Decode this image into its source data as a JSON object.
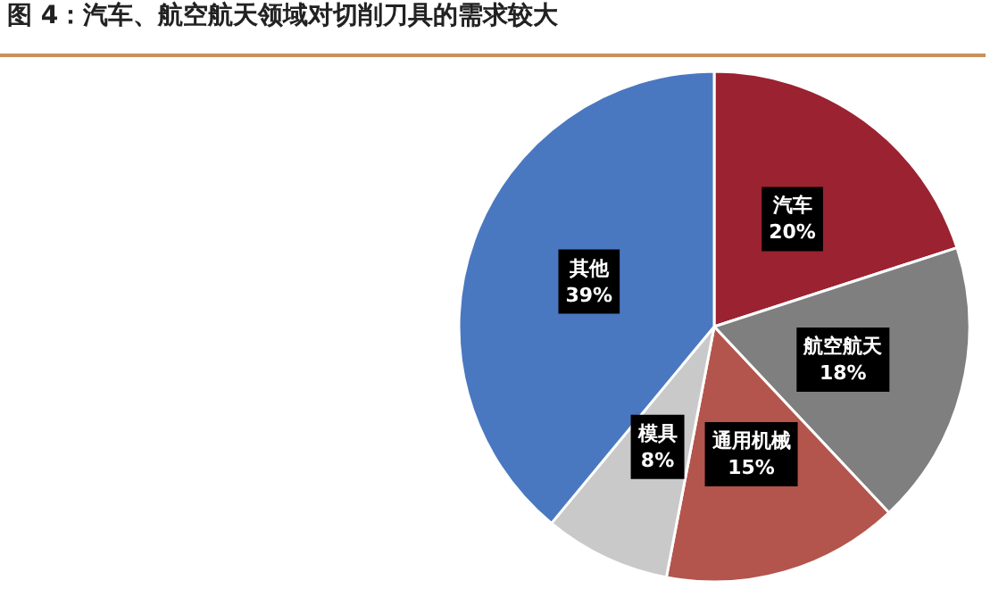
{
  "chart_data": {
    "type": "pie",
    "title": "图 4：汽车、航空航天领域对切削刀具的需求较大",
    "categories": [
      "汽车",
      "航空航天",
      "通用机械",
      "模具",
      "其他"
    ],
    "values": [
      20,
      18,
      15,
      8,
      39
    ],
    "colors": [
      "#9b2230",
      "#7f7f7f",
      "#b3554c",
      "#c9c9c9",
      "#4a78c0"
    ],
    "value_labels": [
      "20%",
      "18%",
      "15%",
      "8%",
      "39%"
    ],
    "legend": false
  }
}
